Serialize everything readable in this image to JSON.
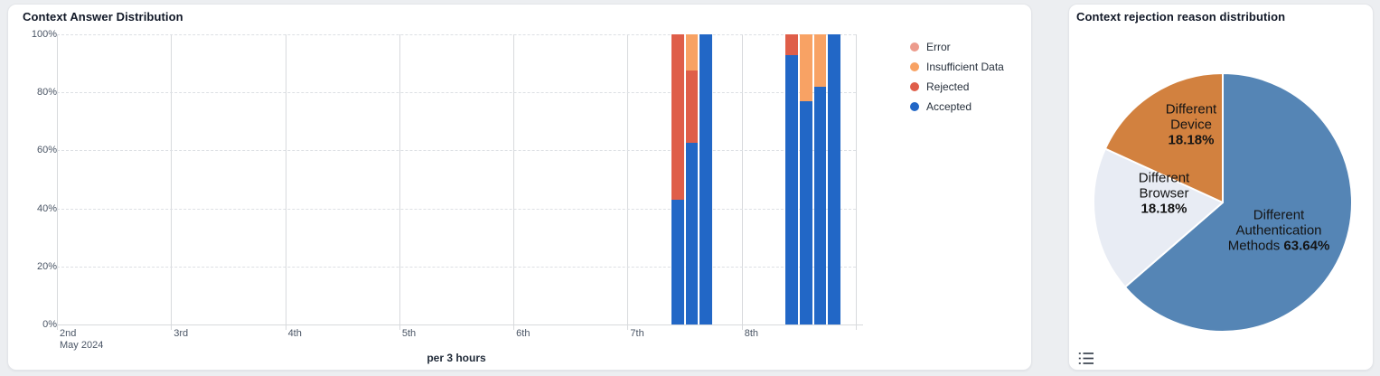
{
  "left_panel": {
    "title": "Context Answer Distribution",
    "footer": "per 3 hours",
    "legend": [
      {
        "label": "Error",
        "color": "#ec9b8c"
      },
      {
        "label": "Insufficient Data",
        "color": "#f8a264"
      },
      {
        "label": "Rejected",
        "color": "#df5e49"
      },
      {
        "label": "Accepted",
        "color": "#2267c6"
      }
    ]
  },
  "right_panel": {
    "title": "Context rejection reason distribution"
  },
  "chart_data": [
    {
      "type": "bar",
      "subtype": "stacked-percent",
      "title": "Context Answer Distribution",
      "xlabel": "per 3 hours",
      "x_axis": {
        "day_ticks": [
          "2nd",
          "3rd",
          "4th",
          "5th",
          "6th",
          "7th",
          "8th"
        ],
        "start_sublabel": "May 2024",
        "slots_per_day": 8,
        "slot_duration": "3 hours"
      },
      "y_axis": {
        "ticks": [
          "0%",
          "20%",
          "40%",
          "60%",
          "80%",
          "100%"
        ],
        "range": [
          0,
          100
        ],
        "unit": "%"
      },
      "series_order_bottom_up": [
        "Accepted",
        "Rejected",
        "Insufficient Data",
        "Error"
      ],
      "colors": {
        "Accepted": "#2267c6",
        "Rejected": "#df5e49",
        "Insufficient Data": "#f8a264",
        "Error": "#ec9b8c"
      },
      "grid": {
        "vertical": "solid",
        "horizontal": "dashed"
      },
      "bars": [
        {
          "date": "May 7",
          "time_slot": "09:00-12:00",
          "day_index": 5,
          "slot": 3,
          "values": {
            "Accepted": 42.9,
            "Rejected": 57.1,
            "Insufficient Data": 0,
            "Error": 0
          }
        },
        {
          "date": "May 7",
          "time_slot": "12:00-15:00",
          "day_index": 5,
          "slot": 4,
          "values": {
            "Accepted": 62.5,
            "Rejected": 25,
            "Insufficient Data": 12.5,
            "Error": 0
          }
        },
        {
          "date": "May 7",
          "time_slot": "15:00-18:00",
          "day_index": 5,
          "slot": 5,
          "values": {
            "Accepted": 100,
            "Rejected": 0,
            "Insufficient Data": 0,
            "Error": 0
          }
        },
        {
          "date": "May 8",
          "time_slot": "09:00-12:00",
          "day_index": 6,
          "slot": 3,
          "values": {
            "Accepted": 92.9,
            "Rejected": 7.1,
            "Insufficient Data": 0,
            "Error": 0
          }
        },
        {
          "date": "May 8",
          "time_slot": "12:00-15:00",
          "day_index": 6,
          "slot": 4,
          "values": {
            "Accepted": 76.9,
            "Rejected": 0,
            "Insufficient Data": 23.1,
            "Error": 0
          }
        },
        {
          "date": "May 8",
          "time_slot": "15:00-18:00",
          "day_index": 6,
          "slot": 5,
          "values": {
            "Accepted": 81.8,
            "Rejected": 0,
            "Insufficient Data": 18.2,
            "Error": 0
          }
        },
        {
          "date": "May 8",
          "time_slot": "18:00-21:00",
          "day_index": 6,
          "slot": 6,
          "values": {
            "Accepted": 100,
            "Rejected": 0,
            "Insufficient Data": 0,
            "Error": 0
          }
        }
      ],
      "legend": [
        "Error",
        "Insufficient Data",
        "Rejected",
        "Accepted"
      ],
      "legend_position": "right-top"
    },
    {
      "type": "pie",
      "title": "Context rejection reason distribution",
      "start_angle_deg": 0,
      "direction": "clockwise",
      "slices": [
        {
          "label_lines": [
            "Different",
            "Authentication"
          ],
          "percent_prefix": "Methods ",
          "percent": "63.64%",
          "value": 63.64,
          "color": "#5585b5"
        },
        {
          "label_lines": [
            "Different",
            "Browser"
          ],
          "percent_prefix": "",
          "percent": "18.18%",
          "value": 18.18,
          "color": "#e8ecf4"
        },
        {
          "label_lines": [
            "Different",
            "Device"
          ],
          "percent_prefix": "",
          "percent": "18.18%",
          "value": 18.18,
          "color": "#d2813f"
        }
      ]
    }
  ]
}
